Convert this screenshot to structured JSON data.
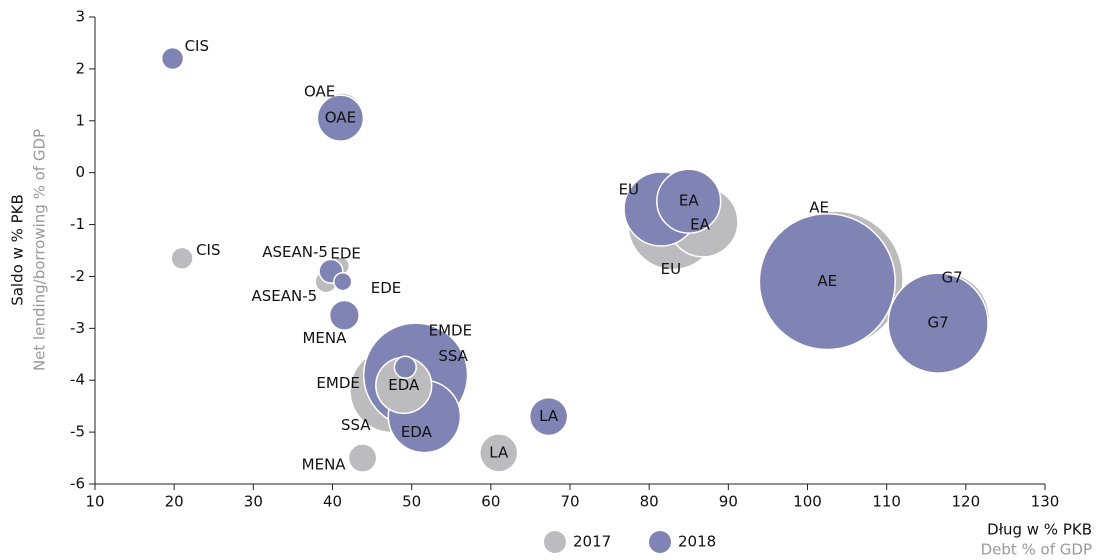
{
  "chart_data": {
    "type": "scatter",
    "ylabel": "Saldo w % PKB",
    "ylabel_en": "Net lending/borrowing % of GDP",
    "xlabel": "Dług w % PKB",
    "xlabel_en": "Debt % of GDP",
    "xlim": [
      10,
      130
    ],
    "xticks": [
      10,
      20,
      30,
      40,
      50,
      60,
      70,
      80,
      90,
      100,
      110,
      120,
      130
    ],
    "ylim": [
      -6,
      3
    ],
    "yticks": [
      -6,
      -5,
      -4,
      -3,
      -2,
      -1,
      0,
      1,
      2,
      3
    ],
    "legend": "bottom",
    "series": [
      {
        "name": "2017",
        "color": "#bcbcbe",
        "labels": [
          "CIS",
          "OAE",
          "ASEAN-5",
          "EDE",
          "MENA",
          "SSA",
          "EMDE",
          "EDA",
          "LA",
          "EU",
          "EA",
          "AE",
          "G7"
        ],
        "x": [
          21,
          41.2,
          39.2,
          41,
          43.8,
          46.2,
          47.5,
          49,
          61,
          83,
          86.8,
          103.5,
          117.3
        ],
        "values": [
          -1.65,
          1.15,
          -2.1,
          -1.8,
          -5.5,
          -4.7,
          -4.2,
          -4.1,
          -5.4,
          -1.0,
          -0.95,
          -2.05,
          -2.8
        ],
        "sizes": [
          12,
          40,
          12,
          8,
          20,
          10,
          176,
          78,
          36,
          202,
          122,
          462,
          202
        ]
      },
      {
        "name": "2018",
        "color": "#7f84b4",
        "labels": [
          "CIS",
          "OAE",
          "ASEAN-5",
          "EDE",
          "MENA",
          "SSA",
          "EMDE",
          "EDA",
          "LA",
          "EU",
          "EA",
          "AE",
          "G7"
        ],
        "x": [
          19.8,
          41,
          39.8,
          41.3,
          41.5,
          49.2,
          50.5,
          51.6,
          67.3,
          81.5,
          85,
          102.5,
          116.5
        ],
        "values": [
          2.2,
          1.05,
          -1.9,
          -2.1,
          -2.75,
          -3.75,
          -3.9,
          -4.7,
          -4.7,
          -0.7,
          -0.55,
          -2.1,
          -2.9
        ],
        "sizes": [
          12,
          53,
          14,
          8,
          22,
          12,
          270,
          130,
          36,
          137,
          102,
          462,
          250
        ]
      }
    ]
  }
}
